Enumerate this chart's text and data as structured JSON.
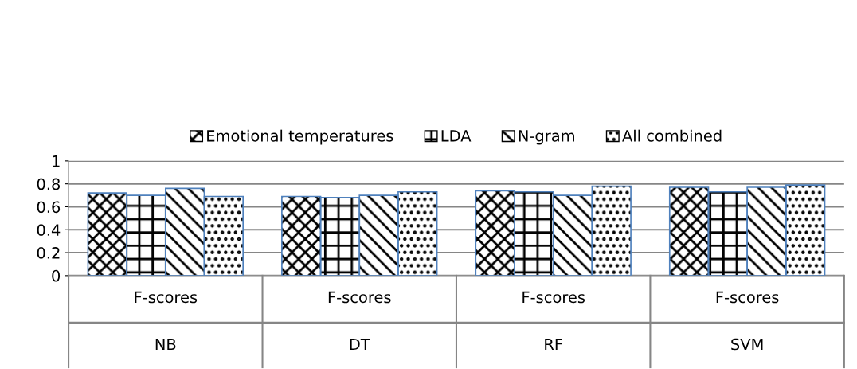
{
  "chart_data": {
    "type": "bar",
    "categories": [
      "F-scores\nNB",
      "F-scores\nDT",
      "F-scores\nRF",
      "F-scores\nSVM"
    ],
    "series": [
      {
        "name": "Emotional temperatures",
        "color": "#000000",
        "values": [
          0.72,
          0.69,
          0.74,
          0.77
        ]
      },
      {
        "name": "LDA",
        "color": "#000000",
        "values": [
          0.7,
          0.68,
          0.73,
          0.73
        ]
      },
      {
        "name": "N-gram",
        "color": "#000000",
        "values": [
          0.76,
          0.7,
          0.7,
          0.77
        ]
      },
      {
        "name": "All combined",
        "color": "#000000",
        "values": [
          0.69,
          0.73,
          0.78,
          0.79
        ]
      }
    ],
    "ylim": [
      0,
      1
    ],
    "yticks": [
      0,
      0.2,
      0.4,
      0.6,
      0.8,
      1
    ],
    "grid": "y",
    "legend": "top"
  }
}
